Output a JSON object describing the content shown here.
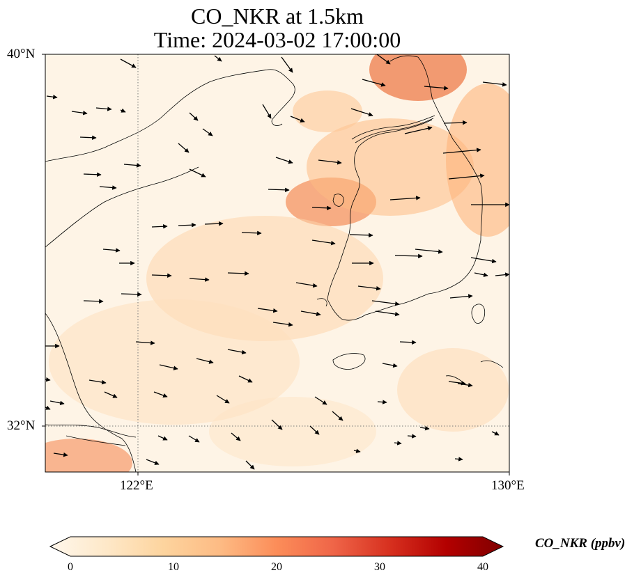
{
  "title_line1": "CO_NKR at 1.5km",
  "title_line2": "Time: 2024-03-02 17:00:00",
  "lat_ticks": [
    "40°N",
    "32°N"
  ],
  "lon_ticks": [
    "122°E",
    "130°E"
  ],
  "colorbar": {
    "label": "CO_NKR (ppbv)",
    "ticks": [
      "0",
      "10",
      "20",
      "30",
      "40"
    ],
    "colormap": "OrRd",
    "colors": [
      "#fff7ec",
      "#fee8c8",
      "#fdd49e",
      "#fdbb84",
      "#fc8d59",
      "#ef6548",
      "#d7301f",
      "#b30000",
      "#7f0000"
    ],
    "extend": "both"
  },
  "map": {
    "projection": "PlateCarree",
    "lon_range": [
      120,
      130
    ],
    "lat_range": [
      31,
      40
    ],
    "gridlines": "dotted"
  }
}
